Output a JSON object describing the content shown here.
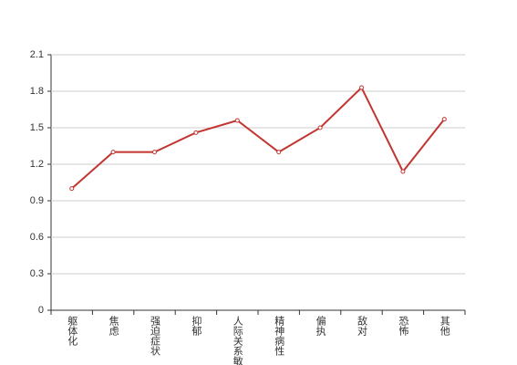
{
  "chart_data": {
    "type": "line",
    "categories": [
      "躯体化",
      "焦虑",
      "强迫症状",
      "抑郁",
      "人际关系敏感",
      "精神病性",
      "偏执",
      "敌对",
      "恐怖",
      "其他"
    ],
    "values": [
      1.0,
      1.3,
      1.3,
      1.46,
      1.56,
      1.3,
      1.5,
      1.83,
      1.14,
      1.57
    ],
    "color": "#c23531",
    "ylim": [
      0,
      2.1
    ],
    "yticks": [
      0,
      0.3,
      0.6,
      0.9,
      1.2,
      1.5,
      1.8,
      2.1
    ],
    "grid": true
  }
}
